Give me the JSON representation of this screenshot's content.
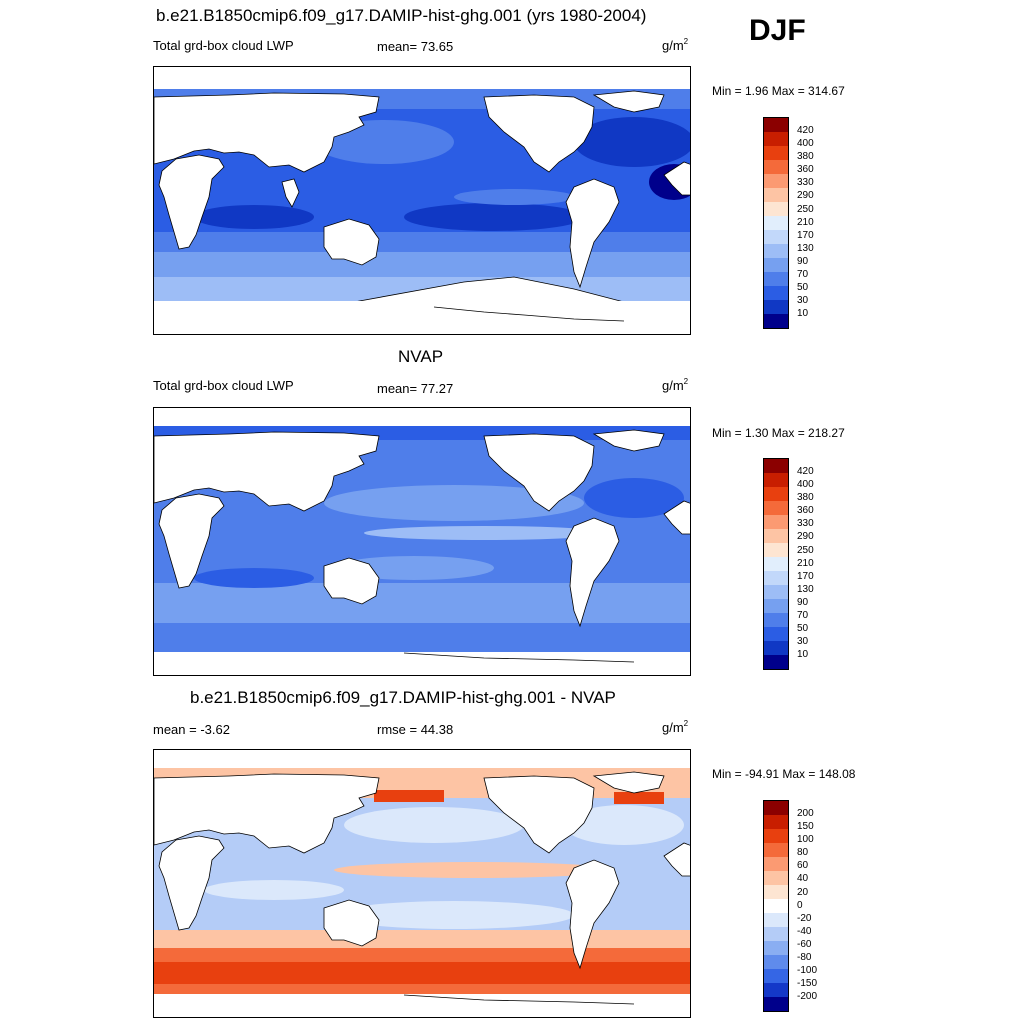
{
  "season": "DJF",
  "panels": [
    {
      "title": "b.e21.B1850cmip6.f09_g17.DAMIP-hist-ghg.001 (yrs 1980-2004)",
      "left_label": "Total grd-box cloud LWP",
      "center_label": "mean=  73.65",
      "units_base": "g/m",
      "units_exp": "2",
      "minmax": "Min =   1.96 Max = 314.67",
      "palette": "lwp"
    },
    {
      "title": "NVAP",
      "left_label": "Total grd-box cloud LWP",
      "center_label": "mean=  77.27",
      "units_base": "g/m",
      "units_exp": "2",
      "minmax": "Min =   1.30 Max = 218.27",
      "palette": "lwp"
    },
    {
      "title": "b.e21.B1850cmip6.f09_g17.DAMIP-hist-ghg.001 - NVAP",
      "left_label": "mean =  -3.62",
      "center_label": "rmse =  44.38",
      "units_base": "g/m",
      "units_exp": "2",
      "minmax": "Min = -94.91 Max = 148.08",
      "palette": "diff"
    }
  ],
  "chart_data": [
    {
      "type": "heatmap",
      "field": "Total grd-box cloud LWP (model)",
      "colorbar_levels": [
        "420",
        "400",
        "380",
        "360",
        "330",
        "290",
        "250",
        "210",
        "170",
        "130",
        "90",
        "70",
        "50",
        "30",
        "10"
      ],
      "colorbar_colors": [
        "#8b0000",
        "#c81e00",
        "#e8400f",
        "#f46a3a",
        "#fb9a72",
        "#fdc4a4",
        "#fde5d2",
        "#e1eefc",
        "#c2d8fa",
        "#9dbdf6",
        "#76a0f0",
        "#4f7eea",
        "#2b5de4",
        "#1038c4",
        "#00008b"
      ],
      "mean": 73.65,
      "min": 1.96,
      "max": 314.67
    },
    {
      "type": "heatmap",
      "field": "Total grd-box cloud LWP (NVAP)",
      "colorbar_levels": [
        "420",
        "400",
        "380",
        "360",
        "330",
        "290",
        "250",
        "210",
        "170",
        "130",
        "90",
        "70",
        "50",
        "30",
        "10"
      ],
      "colorbar_colors": [
        "#8b0000",
        "#c81e00",
        "#e8400f",
        "#f46a3a",
        "#fb9a72",
        "#fdc4a4",
        "#fde5d2",
        "#e1eefc",
        "#c2d8fa",
        "#9dbdf6",
        "#76a0f0",
        "#4f7eea",
        "#2b5de4",
        "#1038c4",
        "#00008b"
      ],
      "mean": 77.27,
      "min": 1.3,
      "max": 218.27
    },
    {
      "type": "heatmap",
      "field": "Model - NVAP difference",
      "colorbar_levels": [
        "200",
        "150",
        "100",
        "80",
        "60",
        "40",
        "20",
        "0",
        "-20",
        "-40",
        "-60",
        "-80",
        "-100",
        "-150",
        "-200"
      ],
      "colorbar_colors": [
        "#8b0000",
        "#c81e00",
        "#e8400f",
        "#f46a3a",
        "#fb9a72",
        "#fdc4a4",
        "#fde5d2",
        "#ffffff",
        "#dbe8fb",
        "#b4ccf7",
        "#8aaef2",
        "#5f8bec",
        "#3566e5",
        "#1438c8",
        "#00008b"
      ],
      "mean": -3.62,
      "rmse": 44.38,
      "min": -94.91,
      "max": 148.08
    }
  ]
}
